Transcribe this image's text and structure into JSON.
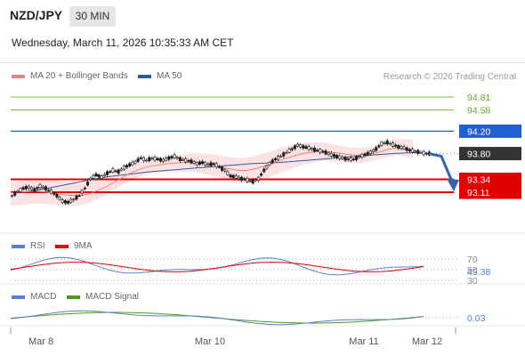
{
  "header": {
    "pair": "NZD/JPY",
    "timeframe": "30 MIN",
    "datetime": "Wednesday, March 11, 2026 10:35:33 AM CET"
  },
  "main_legend": [
    {
      "label": "MA 20 + Bollinger Bands",
      "color": "#f08080"
    },
    {
      "label": "MA 50",
      "color": "#2e5c9a"
    }
  ],
  "credit": "Research © 2026 Trading Central",
  "rsi_legend": [
    {
      "label": "RSI",
      "color": "#5b7fd6"
    },
    {
      "label": "9MA",
      "color": "#e00000"
    }
  ],
  "macd_legend": [
    {
      "label": "MACD",
      "color": "#5b7fd6"
    },
    {
      "label": "MACD Signal",
      "color": "#4a9a1a"
    }
  ],
  "chart_data": {
    "type": "candlestick",
    "x_ticks": [
      "Mar 8",
      "Mar 10",
      "Mar 11",
      "Mar 12"
    ],
    "y_range": [
      92.9,
      94.95
    ],
    "current_price": 93.8,
    "levels": [
      {
        "value": 94.81,
        "label": "94.81",
        "kind": "resistance",
        "color": "#7cc443"
      },
      {
        "value": 94.58,
        "label": "94.58",
        "kind": "resistance",
        "color": "#7cc443"
      },
      {
        "value": 94.2,
        "label": "94.20",
        "kind": "pivot",
        "color": "#1f5fd0"
      },
      {
        "value": 93.8,
        "label": "93.80",
        "kind": "last",
        "color": "#333333"
      },
      {
        "value": 93.34,
        "label": "93.34",
        "kind": "support",
        "color": "#e00000"
      },
      {
        "value": 93.11,
        "label": "93.11",
        "kind": "support",
        "color": "#e00000"
      }
    ],
    "forecast_arrow": {
      "from": 93.8,
      "to": 93.11,
      "direction": "down",
      "color": "#2e64b0"
    },
    "price": [
      93.05,
      93.12,
      93.18,
      93.2,
      93.15,
      93.22,
      93.18,
      93.12,
      93.05,
      92.95,
      92.93,
      92.98,
      93.05,
      93.18,
      93.35,
      93.42,
      93.38,
      93.45,
      93.5,
      93.48,
      93.55,
      93.6,
      93.65,
      93.72,
      93.68,
      93.72,
      93.7,
      93.68,
      93.72,
      93.75,
      93.7,
      93.68,
      93.66,
      93.62,
      93.64,
      93.6,
      93.62,
      93.56,
      93.5,
      93.4,
      93.38,
      93.35,
      93.33,
      93.3,
      93.35,
      93.5,
      93.62,
      93.7,
      93.75,
      93.82,
      93.88,
      93.95,
      93.92,
      93.9,
      93.87,
      93.85,
      93.82,
      93.78,
      93.75,
      93.72,
      93.7,
      93.7,
      93.74,
      93.78,
      93.82,
      93.88,
      93.98,
      94.0,
      93.96,
      93.92,
      93.9,
      93.86,
      93.84,
      93.82,
      93.8
    ],
    "ma20": [
      93.1,
      93.11,
      93.12,
      93.13,
      93.12,
      93.1,
      93.08,
      93.06,
      93.05,
      93.05,
      93.08,
      93.14,
      93.2,
      93.28,
      93.36,
      93.44,
      93.5,
      93.55,
      93.58,
      93.6,
      93.62,
      93.63,
      93.64,
      93.65,
      93.64,
      93.62,
      93.59,
      93.55,
      93.52,
      93.5,
      93.5,
      93.53,
      93.57,
      93.62,
      93.67,
      93.72,
      93.76,
      93.8,
      93.82,
      93.84,
      93.84,
      93.82,
      93.8,
      93.78,
      93.77,
      93.78,
      93.8,
      93.84,
      93.88,
      93.9,
      93.88,
      93.86
    ],
    "ma50": [
      93.1,
      93.12,
      93.15,
      93.2,
      93.25,
      93.3,
      93.35,
      93.39,
      93.42,
      93.45,
      93.48,
      93.5,
      93.52,
      93.54,
      93.56,
      93.58,
      93.6,
      93.62,
      93.63,
      93.64,
      93.66,
      93.68,
      93.7,
      93.72,
      93.74,
      93.76,
      93.78,
      93.8,
      93.81,
      93.82
    ],
    "rsi": {
      "levels": [
        70,
        50,
        30
      ],
      "value": 45.38,
      "ylim": [
        0,
        100
      ]
    },
    "macd": {
      "value": 0.03
    }
  }
}
